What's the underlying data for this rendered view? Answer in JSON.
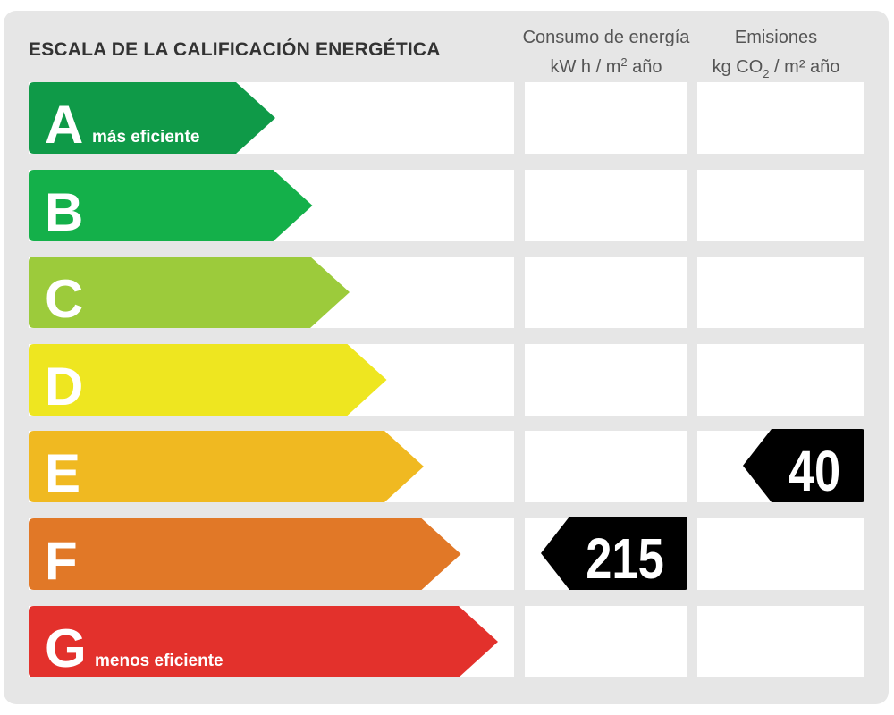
{
  "chart_data": {
    "type": "table",
    "title": "ESCALA DE LA CALIFICACIÓN ENERGÉTICA",
    "columns": [
      {
        "line1": "Consumo de energía",
        "line2_pre": "kW h  / m",
        "line2_sup": "2",
        "line2_sub": "",
        "line2_post": " año"
      },
      {
        "line1": "Emisiones",
        "line2_pre": "kg CO",
        "line2_sup": "",
        "line2_sub": "2",
        "line2_post": "  / m² año"
      }
    ],
    "categories": [
      "A",
      "B",
      "C",
      "D",
      "E",
      "F",
      "G"
    ],
    "category_notes": [
      "más eficiente",
      "",
      "",
      "",
      "",
      "",
      "menos eficiente"
    ],
    "colors": [
      "#0f9a48",
      "#14b04a",
      "#9ccb3b",
      "#eee620",
      "#f0b921",
      "#e17827",
      "#e3312c"
    ],
    "series": [
      {
        "name": "Consumo de energía",
        "category": "F",
        "value": 215
      },
      {
        "name": "Emisiones",
        "category": "E",
        "value": 40
      }
    ],
    "marker_color": "#000000"
  }
}
